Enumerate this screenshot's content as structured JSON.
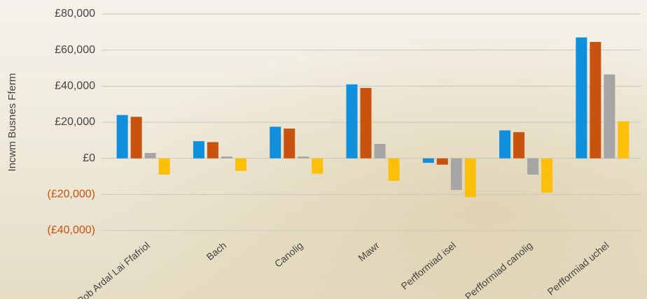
{
  "chart_data": {
    "type": "bar",
    "y_label": "Incwm Busnes Fferm",
    "categories": [
      "Pob Ardal Lai Ffafriol",
      "Bach",
      "Canolig",
      "Mawr",
      "Perfformiad isel",
      "Perfformiad canolig",
      "Perfformiad uchel"
    ],
    "series": [
      {
        "color": "#0f8fdc",
        "values": [
          24000,
          9500,
          17500,
          41000,
          -2500,
          15500,
          67000
        ]
      },
      {
        "color": "#c9520f",
        "values": [
          23000,
          9000,
          16500,
          39000,
          -3500,
          14500,
          64500
        ]
      },
      {
        "color": "#a5a5a5",
        "values": [
          3000,
          1000,
          1000,
          8000,
          -17500,
          -9000,
          46500
        ]
      },
      {
        "color": "#fcc00a",
        "values": [
          -9000,
          -7000,
          -8500,
          -12500,
          -21500,
          -19000,
          20500
        ]
      }
    ],
    "ylim": [
      -40000,
      80000
    ],
    "yticks": [
      {
        "value": -40000,
        "label": "(£40,000)"
      },
      {
        "value": -20000,
        "label": "(£20,000)"
      },
      {
        "value": 0,
        "label": "£0"
      },
      {
        "value": 20000,
        "label": "£20,000"
      },
      {
        "value": 40000,
        "label": "£40,000"
      },
      {
        "value": 60000,
        "label": "£60,000"
      },
      {
        "value": 80000,
        "label": "£80,000"
      }
    ],
    "negative_tick_color": "#c9520f",
    "grid": true
  }
}
